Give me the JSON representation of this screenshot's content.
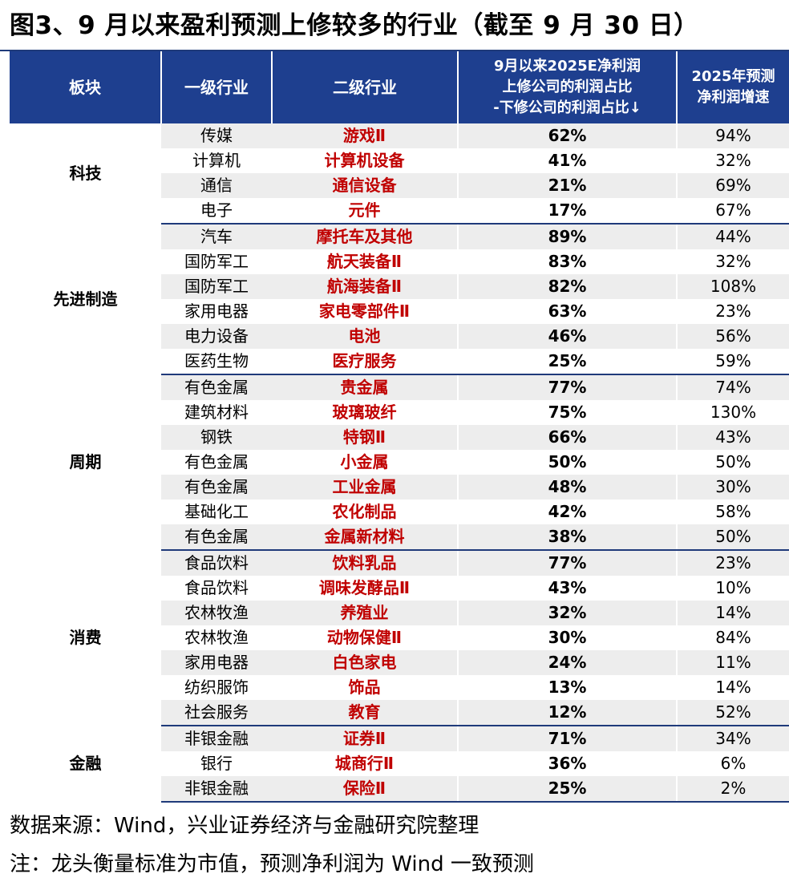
{
  "title": "图3、9 月以来盈利预测上修较多的行业（截至 9 月 30 日）",
  "header": {
    "sector": "板块",
    "level1": "一级行业",
    "level2": "二级行业",
    "revision_lines": [
      "9月以来2025E净利润",
      "上修公司的利润占比",
      "-下修公司的利润占比↓"
    ],
    "growth_lines": [
      "2025年预测",
      "净利润增速"
    ]
  },
  "chart_data": {
    "type": "table",
    "columns": [
      "板块",
      "一级行业",
      "二级行业",
      "9月以来2025E净利润上修公司的利润占比-下修公司的利润占比↓",
      "2025年预测净利润增速"
    ],
    "groups": [
      {
        "sector": "科技",
        "rows": [
          {
            "level1": "传媒",
            "level2": "游戏Ⅱ",
            "revision": "62%",
            "growth": "94%"
          },
          {
            "level1": "计算机",
            "level2": "计算机设备",
            "revision": "41%",
            "growth": "32%"
          },
          {
            "level1": "通信",
            "level2": "通信设备",
            "revision": "21%",
            "growth": "69%"
          },
          {
            "level1": "电子",
            "level2": "元件",
            "revision": "17%",
            "growth": "67%"
          }
        ]
      },
      {
        "sector": "先进制造",
        "rows": [
          {
            "level1": "汽车",
            "level2": "摩托车及其他",
            "revision": "89%",
            "growth": "44%"
          },
          {
            "level1": "国防军工",
            "level2": "航天装备Ⅱ",
            "revision": "83%",
            "growth": "32%"
          },
          {
            "level1": "国防军工",
            "level2": "航海装备Ⅱ",
            "revision": "82%",
            "growth": "108%"
          },
          {
            "level1": "家用电器",
            "level2": "家电零部件Ⅱ",
            "revision": "63%",
            "growth": "23%"
          },
          {
            "level1": "电力设备",
            "level2": "电池",
            "revision": "46%",
            "growth": "56%"
          },
          {
            "level1": "医药生物",
            "level2": "医疗服务",
            "revision": "25%",
            "growth": "59%"
          }
        ]
      },
      {
        "sector": "周期",
        "rows": [
          {
            "level1": "有色金属",
            "level2": "贵金属",
            "revision": "77%",
            "growth": "74%"
          },
          {
            "level1": "建筑材料",
            "level2": "玻璃玻纤",
            "revision": "75%",
            "growth": "130%"
          },
          {
            "level1": "钢铁",
            "level2": "特钢Ⅱ",
            "revision": "66%",
            "growth": "43%"
          },
          {
            "level1": "有色金属",
            "level2": "小金属",
            "revision": "50%",
            "growth": "50%"
          },
          {
            "level1": "有色金属",
            "level2": "工业金属",
            "revision": "48%",
            "growth": "30%"
          },
          {
            "level1": "基础化工",
            "level2": "农化制品",
            "revision": "42%",
            "growth": "58%"
          },
          {
            "level1": "有色金属",
            "level2": "金属新材料",
            "revision": "38%",
            "growth": "50%"
          }
        ]
      },
      {
        "sector": "消费",
        "rows": [
          {
            "level1": "食品饮料",
            "level2": "饮料乳品",
            "revision": "77%",
            "growth": "23%"
          },
          {
            "level1": "食品饮料",
            "level2": "调味发酵品Ⅱ",
            "revision": "43%",
            "growth": "10%"
          },
          {
            "level1": "农林牧渔",
            "level2": "养殖业",
            "revision": "32%",
            "growth": "14%"
          },
          {
            "level1": "农林牧渔",
            "level2": "动物保健Ⅱ",
            "revision": "30%",
            "growth": "84%"
          },
          {
            "level1": "家用电器",
            "level2": "白色家电",
            "revision": "24%",
            "growth": "11%"
          },
          {
            "level1": "纺织服饰",
            "level2": "饰品",
            "revision": "13%",
            "growth": "14%"
          },
          {
            "level1": "社会服务",
            "level2": "教育",
            "revision": "12%",
            "growth": "52%"
          }
        ]
      },
      {
        "sector": "金融",
        "rows": [
          {
            "level1": "非银金融",
            "level2": "证券Ⅱ",
            "revision": "71%",
            "growth": "34%"
          },
          {
            "level1": "银行",
            "level2": "城商行Ⅱ",
            "revision": "36%",
            "growth": "6%"
          },
          {
            "level1": "非银金融",
            "level2": "保险Ⅱ",
            "revision": "25%",
            "growth": "2%"
          }
        ]
      }
    ]
  },
  "footer": {
    "source": "数据来源：Wind，兴业证券经济与金融研究院整理",
    "note": "注：龙头衡量标准为市值，预测净利润为 Wind 一致预测"
  },
  "colors": {
    "header_bg": "#1e3f8f",
    "level2_text": "#c00000",
    "shade": "#ededed"
  }
}
